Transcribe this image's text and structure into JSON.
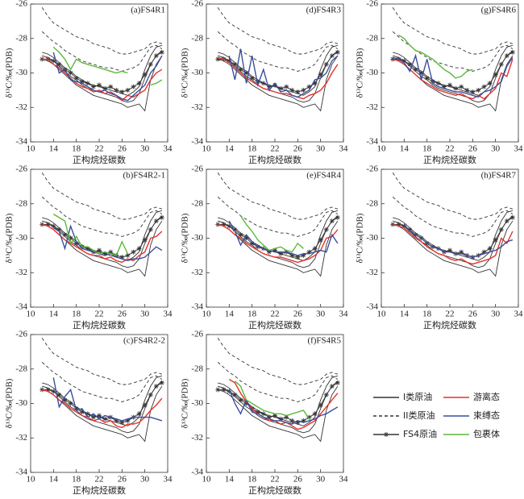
{
  "reference_series": [
    {
      "name": "I类原油",
      "color": "#333333",
      "dash": false,
      "values": [
        -29.0,
        -29.1,
        -29.3,
        -29.6,
        -29.9,
        -30.2,
        -30.4,
        -30.7,
        -30.9,
        -31.0,
        -31.1,
        -31.2,
        -31.3,
        -31.4,
        -31.6,
        -31.7,
        -31.6,
        -31.2,
        -30.3,
        -29.5,
        -29.0,
        -28.7
      ]
    },
    {
      "color": "#333333",
      "dash": false,
      "values": [
        -29.2,
        -29.3,
        -29.5,
        -29.8,
        -30.1,
        -30.4,
        -30.7,
        -30.9,
        -31.1,
        -31.3,
        -31.4,
        -31.5,
        -31.6,
        -31.7,
        -31.8,
        -32.0,
        -31.9,
        -31.8,
        -32.2,
        -30.4,
        -29.5,
        -29.0
      ]
    },
    {
      "color": "#333333",
      "dash": false,
      "values": [
        -28.8,
        -28.9,
        -29.1,
        -29.4,
        -29.7,
        -29.9,
        -30.2,
        -30.4,
        -30.6,
        -30.7,
        -30.8,
        -30.9,
        -31.0,
        -31.1,
        -31.2,
        -31.3,
        -31.1,
        -30.8,
        -29.8,
        -29.0,
        -28.5,
        -28.4
      ]
    },
    {
      "name": "II类原油",
      "color": "#333333",
      "dash": true,
      "values": [
        -26.2,
        -26.7,
        -27.1,
        -27.3,
        -27.5,
        -27.7,
        -27.9,
        -28.0,
        -28.1,
        -28.3,
        -28.4,
        -28.5,
        -28.6,
        -28.8,
        -28.9,
        -28.9,
        -28.8,
        -28.7,
        -28.6,
        -28.3,
        -28.2,
        -28.3
      ]
    },
    {
      "color": "#333333",
      "dash": true,
      "values": [
        -27.6,
        -27.9,
        -28.2,
        -28.4,
        -28.7,
        -28.9,
        -29.1,
        -29.3,
        -29.4,
        -29.5,
        -29.6,
        -29.7,
        -29.7,
        -29.8,
        -29.9,
        -29.8,
        -29.7,
        -29.5,
        -29.0,
        -28.5,
        -28.4,
        -28.6
      ]
    },
    {
      "name": "FS4原油",
      "color": "#333333",
      "dash": false,
      "marker": "star",
      "values": [
        -29.2,
        -29.2,
        -29.3,
        -29.5,
        -29.8,
        -30.0,
        -30.3,
        -30.5,
        -30.6,
        -30.8,
        -30.7,
        -30.9,
        -30.8,
        -31.0,
        -31.1,
        -31.0,
        -30.8,
        -30.6,
        -30.1,
        -29.5,
        -29.0,
        -28.8
      ]
    }
  ],
  "chart_data": [
    {
      "type": "line",
      "title": "(a)FS4R1",
      "x_label": "正构烷烃碳数",
      "y_label": "δ¹³C/‰(PDB)",
      "x": [
        12,
        13,
        14,
        15,
        16,
        17,
        18,
        19,
        20,
        21,
        22,
        23,
        24,
        25,
        26,
        27,
        28,
        29,
        30,
        31,
        32,
        33
      ],
      "xlim": [
        10,
        34
      ],
      "xticks": [
        10,
        14,
        18,
        22,
        26,
        30,
        34
      ],
      "ylim": [
        -34,
        -26
      ],
      "yticks": [
        -34,
        -32,
        -30,
        -28,
        -26
      ],
      "series": [
        {
          "name": "游离态",
          "color": "#e8312a",
          "values": [
            -29.2,
            -29.2,
            -29.5,
            -29.7,
            -30.0,
            -30.3,
            -30.6,
            -30.8,
            -30.9,
            -31.1,
            -31.0,
            -31.2,
            -31.1,
            -31.3,
            -31.6,
            -31.3,
            -31.4,
            -31.2,
            -31.0,
            -30.4,
            -30.0,
            -29.8
          ]
        },
        {
          "name": "束缚态",
          "color": "#3a4f9e",
          "values": [
            null,
            null,
            -28.8,
            -30.0,
            -29.8,
            -30.4,
            -30.5,
            -30.6,
            -30.8,
            -31.0,
            -31.1,
            -31.0,
            -31.2,
            -31.3,
            -31.5,
            -31.6,
            -31.3,
            -31.0,
            -30.7,
            -30.0,
            -29.6,
            -29.0
          ]
        },
        {
          "name": "包裹体",
          "color": "#5cb83a",
          "values": [
            null,
            null,
            -28.5,
            -28.8,
            -29.2,
            -29.8,
            -29.2,
            -29.4,
            -29.5,
            -29.6,
            -29.7,
            -29.8,
            -29.9,
            -30.0,
            -29.9,
            -30.0,
            null,
            null,
            null,
            -30.7,
            -30.6,
            -30.4
          ]
        }
      ]
    },
    {
      "type": "line",
      "title": "(d)FS4R3",
      "x_label": "正构烷烃碳数",
      "y_label": "δ¹³C/‰(PDB)",
      "x": [
        12,
        13,
        14,
        15,
        16,
        17,
        18,
        19,
        20,
        21,
        22,
        23,
        24,
        25,
        26,
        27,
        28,
        29,
        30,
        31,
        32,
        33
      ],
      "xlim": [
        10,
        34
      ],
      "xticks": [
        10,
        14,
        18,
        22,
        26,
        30,
        34
      ],
      "ylim": [
        -34,
        -26
      ],
      "yticks": [
        -34,
        -32,
        -30,
        -28,
        -26
      ],
      "series": [
        {
          "name": "游离态",
          "color": "#e8312a",
          "values": [
            -29.1,
            -29.2,
            -29.4,
            -29.7,
            -30.0,
            -30.3,
            -30.5,
            -30.7,
            -30.9,
            -31.0,
            -31.1,
            -31.2,
            -31.2,
            -31.3,
            -31.4,
            -31.5,
            -31.3,
            -31.2,
            -31.0,
            -30.6,
            -30.0,
            -29.5
          ]
        },
        {
          "name": "束缚态",
          "color": "#3a4f9e",
          "values": [
            null,
            null,
            -29.0,
            -30.4,
            -28.6,
            -30.6,
            -29.0,
            -30.7,
            -29.8,
            -31.0,
            -30.6,
            -31.1,
            -31.0,
            -31.3,
            -31.4,
            -31.2,
            -31.0,
            -30.4,
            -30.3,
            -30.0,
            -29.3,
            -29.0
          ]
        }
      ]
    },
    {
      "type": "line",
      "title": "(g)FS4R6",
      "x_label": "正构烷烃碳数",
      "y_label": "δ¹³C/‰(PDB)",
      "x": [
        12,
        13,
        14,
        15,
        16,
        17,
        18,
        19,
        20,
        21,
        22,
        23,
        24,
        25,
        26,
        27,
        28,
        29,
        30,
        31,
        32,
        33
      ],
      "xlim": [
        10,
        34
      ],
      "xticks": [
        10,
        14,
        18,
        22,
        26,
        30,
        34
      ],
      "ylim": [
        -34,
        -26
      ],
      "yticks": [
        -34,
        -32,
        -30,
        -28,
        -26
      ],
      "series": [
        {
          "name": "游离态",
          "color": "#e8312a",
          "values": [
            -29.2,
            -29.3,
            -29.5,
            -29.8,
            -30.1,
            -30.4,
            -30.6,
            -30.8,
            -31.0,
            -31.1,
            -31.2,
            -31.3,
            -31.2,
            -31.4,
            -31.5,
            -31.3,
            -31.5,
            -31.2,
            -30.9,
            -30.0,
            -30.2,
            -29.2
          ]
        },
        {
          "name": "束缚态",
          "color": "#3a4f9e",
          "values": [
            -29.1,
            -29.2,
            -29.4,
            -29.9,
            -29.0,
            -30.4,
            -29.2,
            -30.6,
            -30.8,
            -30.9,
            -31.0,
            -31.1,
            -31.1,
            -31.2,
            -31.3,
            -31.4,
            -31.1,
            -31.0,
            -30.8,
            -30.5,
            -29.6,
            -29.1
          ]
        },
        {
          "name": "包裹体",
          "color": "#5cb83a",
          "values": [
            null,
            -27.8,
            -28.0,
            -28.4,
            -28.7,
            -28.8,
            -29.0,
            -29.2,
            -29.5,
            -29.8,
            -30.0,
            -30.3,
            -30.2,
            -29.9,
            -29.8,
            null,
            null,
            null,
            null,
            null,
            null,
            null
          ]
        }
      ]
    },
    {
      "type": "line",
      "title": "(b)FS4R2-1",
      "x_label": "正构烷烃碳数",
      "y_label": "δ¹³C/‰(PDB)",
      "x": [
        12,
        13,
        14,
        15,
        16,
        17,
        18,
        19,
        20,
        21,
        22,
        23,
        24,
        25,
        26,
        27,
        28,
        29,
        30,
        31,
        32,
        33
      ],
      "xlim": [
        10,
        34
      ],
      "xticks": [
        10,
        14,
        18,
        22,
        26,
        30,
        34
      ],
      "ylim": [
        -34,
        -26
      ],
      "yticks": [
        -34,
        -32,
        -30,
        -28,
        -26
      ],
      "series": [
        {
          "name": "游离态",
          "color": "#e8312a",
          "values": [
            -29.2,
            -29.3,
            -29.5,
            -29.8,
            -30.1,
            -30.3,
            -30.5,
            -30.7,
            -30.9,
            -31.0,
            -31.0,
            -31.2,
            -31.1,
            -31.3,
            -31.4,
            -31.2,
            -31.3,
            -31.0,
            -30.8,
            -30.0,
            -29.9,
            -29.6
          ]
        },
        {
          "name": "束缚态",
          "color": "#3a4f9e",
          "values": [
            null,
            null,
            -29.4,
            -29.6,
            -30.6,
            -29.3,
            -30.2,
            -30.6,
            -30.7,
            -30.8,
            -30.9,
            -31.0,
            -30.9,
            -31.1,
            -31.2,
            -31.3,
            -31.2,
            -31.2,
            -31.1,
            -30.8,
            -30.5,
            -30.7
          ]
        },
        {
          "name": "包裹体",
          "color": "#5cb83a",
          "values": [
            null,
            null,
            -28.6,
            -28.8,
            -29.0,
            -30.3,
            -29.9,
            -30.5,
            -30.5,
            -30.7,
            -30.9,
            -30.8,
            -30.9,
            -31.0,
            -30.2,
            -30.9,
            null,
            null,
            null,
            null,
            null,
            null
          ]
        }
      ]
    },
    {
      "type": "line",
      "title": "(e)FS4R4",
      "x_label": "正构烷烃碳数",
      "y_label": "δ¹³C/‰(PDB)",
      "x": [
        12,
        13,
        14,
        15,
        16,
        17,
        18,
        19,
        20,
        21,
        22,
        23,
        24,
        25,
        26,
        27,
        28,
        29,
        30,
        31,
        32,
        33
      ],
      "xlim": [
        10,
        34
      ],
      "xticks": [
        10,
        14,
        18,
        22,
        26,
        30,
        34
      ],
      "ylim": [
        -34,
        -26
      ],
      "yticks": [
        -34,
        -32,
        -30,
        -28,
        -26
      ],
      "series": [
        {
          "name": "游离态",
          "color": "#e8312a",
          "values": [
            -29.2,
            -29.3,
            -29.5,
            -29.8,
            -30.0,
            -30.3,
            -30.5,
            -30.7,
            -30.9,
            -31.0,
            -31.1,
            -31.1,
            -31.2,
            -31.3,
            -31.4,
            -31.3,
            -31.2,
            -31.0,
            -30.7,
            -30.0,
            -29.9,
            -29.5
          ]
        },
        {
          "name": "束缚态",
          "color": "#3a4f9e",
          "values": [
            null,
            null,
            -29.0,
            -29.6,
            -30.4,
            -29.8,
            -30.2,
            -30.5,
            -30.6,
            -30.7,
            -30.8,
            -30.8,
            -30.8,
            -30.9,
            -31.0,
            -30.9,
            -30.9,
            -30.8,
            -30.7,
            -30.8,
            -29.8,
            -30.3
          ]
        },
        {
          "name": "包裹体",
          "color": "#5cb83a",
          "values": [
            null,
            null,
            null,
            null,
            -28.7,
            -29.2,
            -29.6,
            -30.1,
            -30.4,
            -30.7,
            -30.6,
            -30.5,
            -30.7,
            -30.8,
            -30.3,
            -30.6,
            null,
            null,
            null,
            null,
            null,
            null
          ]
        }
      ]
    },
    {
      "type": "line",
      "title": "(h)FS4R7",
      "x_label": "正构烷烃碳数",
      "y_label": "δ¹³C/‰(PDB)",
      "x": [
        12,
        13,
        14,
        15,
        16,
        17,
        18,
        19,
        20,
        21,
        22,
        23,
        24,
        25,
        26,
        27,
        28,
        29,
        30,
        31,
        32,
        33
      ],
      "xlim": [
        10,
        34
      ],
      "xticks": [
        10,
        14,
        18,
        22,
        26,
        30,
        34
      ],
      "ylim": [
        -34,
        -26
      ],
      "yticks": [
        -34,
        -32,
        -30,
        -28,
        -26
      ],
      "series": [
        {
          "name": "游离态",
          "color": "#e8312a",
          "values": [
            -29.2,
            -29.3,
            -29.4,
            -29.7,
            -30.0,
            -30.2,
            -30.5,
            -30.7,
            -30.9,
            -31.0,
            -31.2,
            -31.3,
            -31.2,
            -31.4,
            -31.5,
            -31.4,
            -31.3,
            -31.2,
            -31.0,
            -30.0,
            -30.3,
            -29.6
          ]
        },
        {
          "name": "束缚态",
          "color": "#3a4f9e",
          "values": [
            null,
            null,
            -29.2,
            -29.6,
            -29.8,
            -30.0,
            -30.3,
            -30.5,
            -30.6,
            -30.8,
            -30.8,
            -30.9,
            -30.9,
            -31.0,
            -31.1,
            -31.0,
            -30.9,
            -30.8,
            -30.7,
            -30.5,
            -30.2,
            -30.1
          ]
        }
      ]
    },
    {
      "type": "line",
      "title": "(c)FS4R2-2",
      "x_label": "正构烷烃碳数",
      "y_label": "δ¹³C/‰(PDB)",
      "x": [
        12,
        13,
        14,
        15,
        16,
        17,
        18,
        19,
        20,
        21,
        22,
        23,
        24,
        25,
        26,
        27,
        28,
        29,
        30,
        31,
        32,
        33
      ],
      "xlim": [
        10,
        34
      ],
      "xticks": [
        10,
        14,
        18,
        22,
        26,
        30,
        34
      ],
      "ylim": [
        -34,
        -26
      ],
      "yticks": [
        -34,
        -32,
        -30,
        -28,
        -26
      ],
      "series": [
        {
          "name": "游离态",
          "color": "#e8312a",
          "values": [
            -29.2,
            -29.3,
            -29.5,
            -29.8,
            -30.0,
            -30.3,
            -30.5,
            -30.7,
            -30.8,
            -31.0,
            -30.9,
            -31.1,
            -31.0,
            -31.3,
            -31.4,
            -31.2,
            -31.2,
            -31.1,
            -30.8,
            -30.4,
            -30.1,
            -29.7
          ]
        },
        {
          "name": "束缚态",
          "color": "#3a4f9e",
          "values": [
            null,
            null,
            -28.5,
            -30.2,
            -29.6,
            -29.2,
            -30.4,
            -30.3,
            -30.8,
            -30.6,
            -30.9,
            -30.7,
            -30.8,
            -30.9,
            -31.0,
            -30.9,
            -30.8,
            -30.8,
            -30.8,
            -30.8,
            -30.9,
            -31.0
          ]
        }
      ]
    },
    {
      "type": "line",
      "title": "(f)FS4R5",
      "x_label": "正构烷烃碳数",
      "y_label": "δ¹³C/‰(PDB)",
      "x": [
        12,
        13,
        14,
        15,
        16,
        17,
        18,
        19,
        20,
        21,
        22,
        23,
        24,
        25,
        26,
        27,
        28,
        29,
        30,
        31,
        32,
        33
      ],
      "xlim": [
        10,
        34
      ],
      "xticks": [
        10,
        14,
        18,
        22,
        26,
        30,
        34
      ],
      "ylim": [
        -34,
        -26
      ],
      "yticks": [
        -34,
        -32,
        -30,
        -28,
        -26
      ],
      "series": [
        {
          "name": "游离态",
          "color": "#e8312a",
          "values": [
            null,
            null,
            -28.6,
            -28.8,
            -29.4,
            -29.9,
            -30.3,
            -30.6,
            -30.8,
            -31.0,
            -31.0,
            -31.2,
            -31.1,
            -31.3,
            -31.5,
            -31.4,
            -31.2,
            -31.0,
            -30.6,
            -30.2,
            -29.8,
            -29.4
          ]
        },
        {
          "name": "束缚态",
          "color": "#3a4f9e",
          "values": [
            null,
            null,
            -29.2,
            -30.0,
            -30.6,
            -29.8,
            -30.5,
            -30.6,
            -30.8,
            -30.9,
            -31.0,
            -31.0,
            -31.1,
            -31.2,
            -31.0,
            -31.1,
            -31.0,
            -30.9,
            -30.7,
            -30.6,
            -30.4,
            -30.2
          ]
        },
        {
          "name": "包裹体",
          "color": "#5cb83a",
          "values": [
            null,
            null,
            null,
            -28.7,
            -29.0,
            -29.8,
            -30.0,
            -30.2,
            -30.4,
            -30.5,
            -30.6,
            -30.6,
            -30.7,
            -30.6,
            -30.5,
            -30.4,
            -30.9,
            null,
            null,
            null,
            null,
            null
          ]
        }
      ]
    }
  ]
}
